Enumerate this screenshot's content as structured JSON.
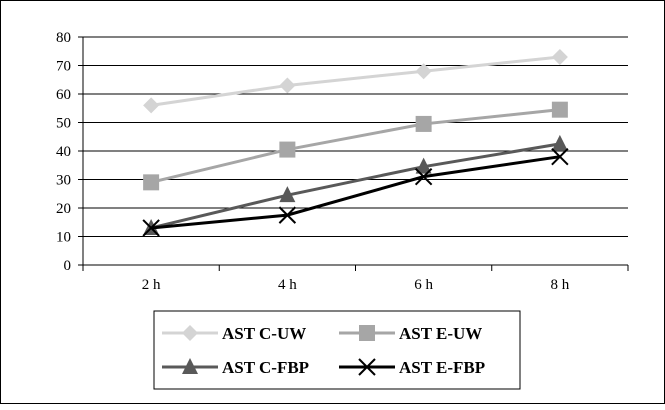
{
  "chart_data": {
    "type": "line",
    "title": "",
    "xlabel": "",
    "ylabel": "",
    "categories": [
      "2 h",
      "4 h",
      "6 h",
      "8 h"
    ],
    "ylim": [
      0,
      80
    ],
    "yticks": [
      0,
      10,
      20,
      30,
      40,
      50,
      60,
      70,
      80
    ],
    "grid": true,
    "legend_position": "bottom",
    "series": [
      {
        "name": "AST C-UW",
        "values": [
          56,
          63,
          68,
          73
        ],
        "color": "#d4d4d4",
        "marker": "diamond"
      },
      {
        "name": "AST E-UW",
        "values": [
          29,
          40.5,
          49.5,
          54.5
        ],
        "color": "#a6a6a6",
        "marker": "square"
      },
      {
        "name": "AST C-FBP",
        "values": [
          13,
          24.5,
          34.5,
          42.5
        ],
        "color": "#595959",
        "marker": "triangle"
      },
      {
        "name": "AST E-FBP",
        "values": [
          13,
          17.5,
          31,
          38
        ],
        "color": "#000000",
        "marker": "x"
      }
    ]
  }
}
